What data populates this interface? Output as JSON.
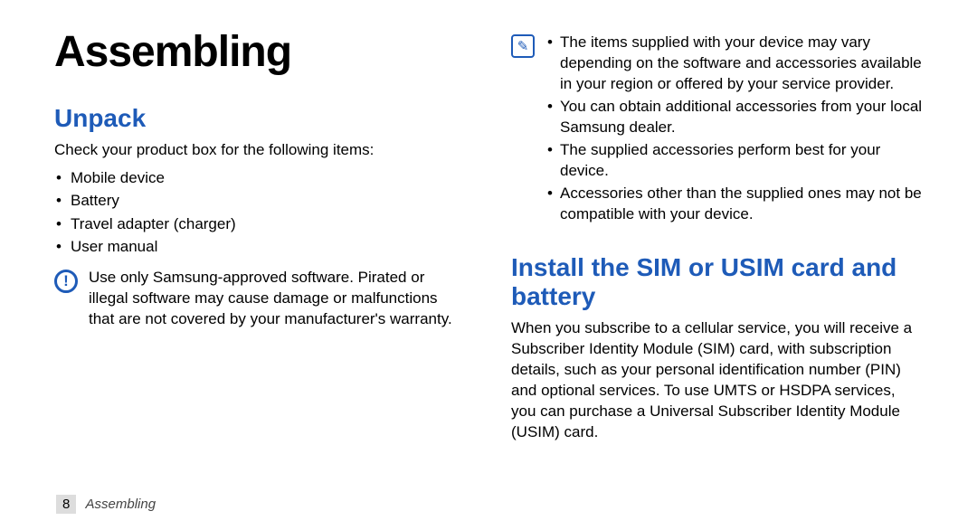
{
  "left": {
    "main_title": "Assembling",
    "section_title": "Unpack",
    "intro": "Check your product box for the following items:",
    "items": [
      "Mobile device",
      "Battery",
      "Travel adapter (charger)",
      "User manual"
    ],
    "warning": "Use only Samsung-approved software. Pirated or illegal software may cause damage or malfunctions that are not covered by your manufacturer's warranty."
  },
  "right": {
    "info_items": [
      "The items supplied with your device may vary depending on the software and accessories available in your region or offered by your service provider.",
      "You can obtain additional accessories from your local Samsung dealer.",
      "The supplied accessories perform best for your device.",
      "Accessories other than the supplied ones may not be compatible with your device."
    ],
    "section_title": "Install the SIM or USIM card and battery",
    "body": "When you subscribe to a cellular service, you will receive a Subscriber Identity Module (SIM) card, with subscription details, such as your personal identification number (PIN) and optional services. To use UMTS or HSDPA services, you can purchase a Universal Subscriber Identity Module (USIM) card."
  },
  "footer": {
    "page": "8",
    "section": "Assembling"
  },
  "icons": {
    "warn": "!",
    "pencil": "✎"
  }
}
